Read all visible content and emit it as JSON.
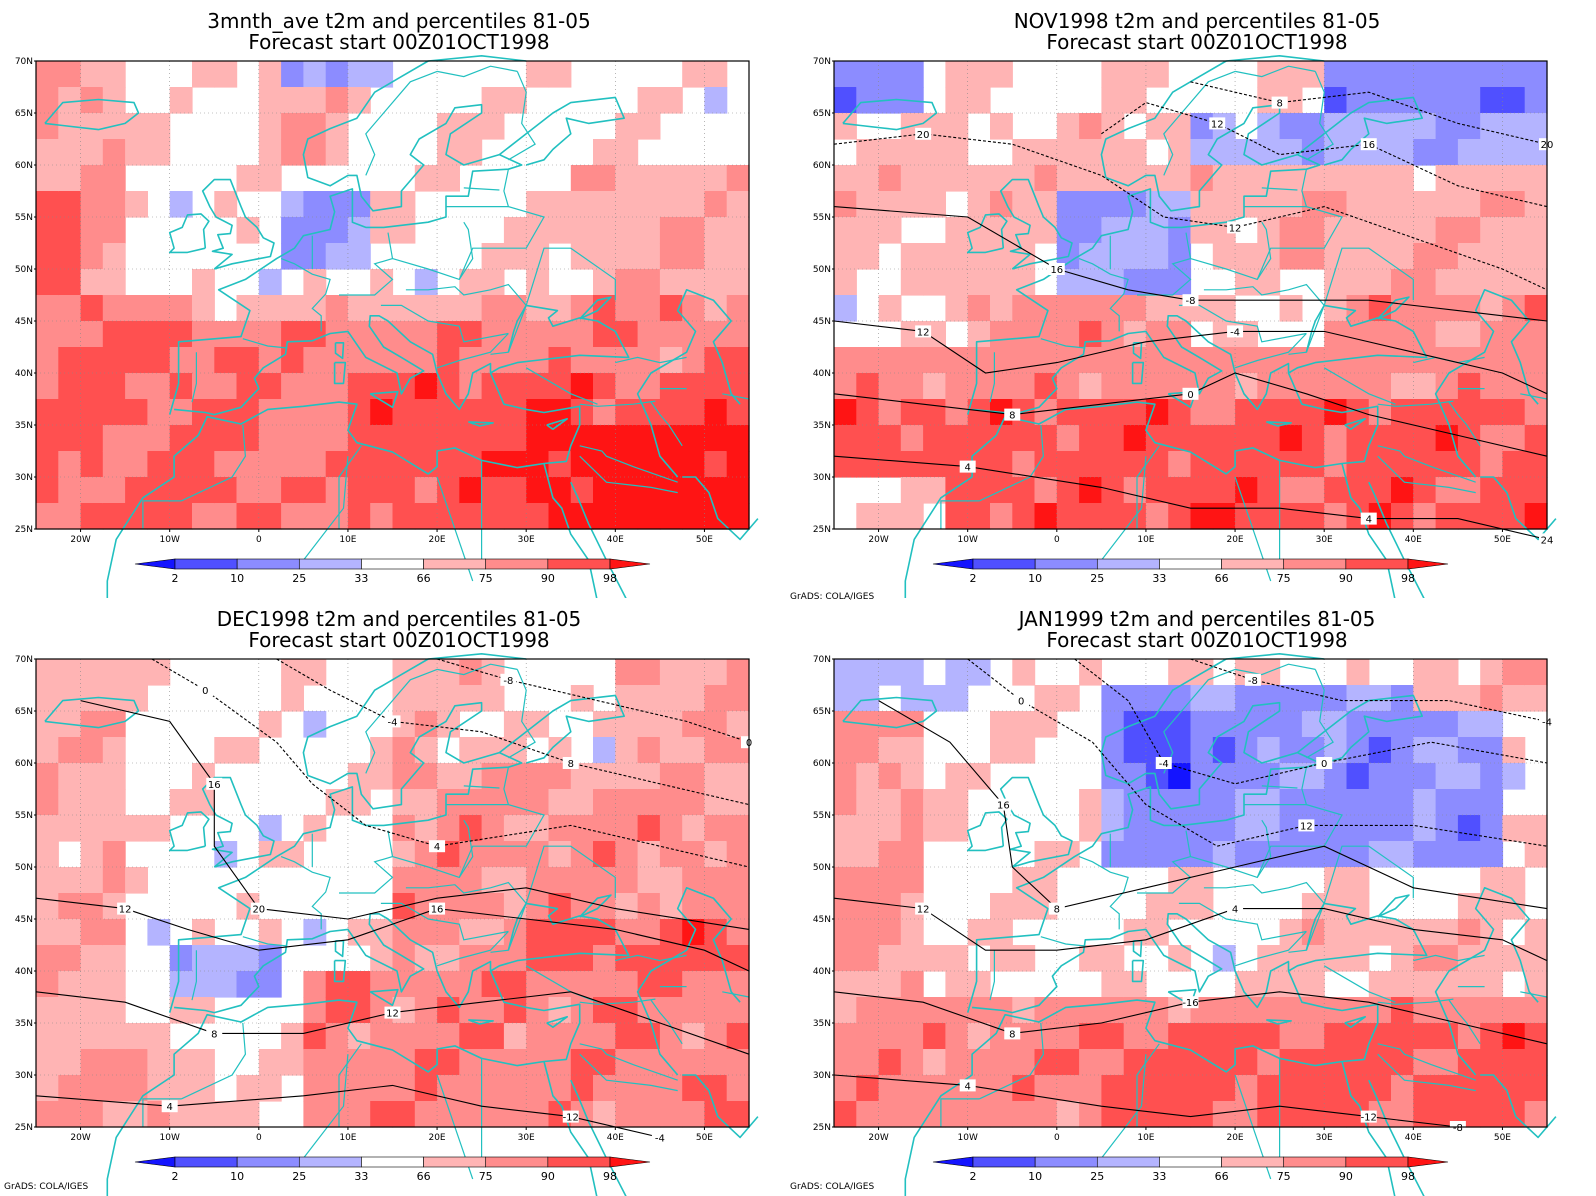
{
  "panels": [
    {
      "title1": "3mnth_ave t2m and percentiles 81-05",
      "title2": "Forecast start 00Z01OCT1998",
      "credit": ""
    },
    {
      "title1": "NOV1998 t2m and percentiles 81-05",
      "title2": "Forecast start 00Z01OCT1998",
      "credit": "GrADS: COLA/IGES"
    },
    {
      "title1": "DEC1998 t2m and percentiles 81-05",
      "title2": "Forecast start 00Z01OCT1998",
      "credit": "GrADS: COLA/IGES"
    },
    {
      "title1": "JAN1999 t2m and percentiles 81-05",
      "title2": "Forecast start 00Z01OCT1998",
      "credit": "GrADS: COLA/IGES"
    }
  ],
  "axes": {
    "lat_labels": [
      "70N",
      "65N",
      "60N",
      "55N",
      "50N",
      "45N",
      "40N",
      "35N",
      "30N",
      "25N"
    ],
    "lon_labels": [
      "20W",
      "10W",
      "0",
      "10E",
      "20E",
      "30E",
      "40E",
      "50E"
    ]
  },
  "colorbar": {
    "labels": [
      "2",
      "10",
      "25",
      "33",
      "66",
      "75",
      "90",
      "98"
    ],
    "colors": [
      "#1414ff",
      "#5050ff",
      "#8c8cff",
      "#b4b4ff",
      "#ffffff",
      "#ffb4b4",
      "#ff8c8c",
      "#ff5050",
      "#ff1414"
    ]
  },
  "colors": {
    "coast": "#22c0c0",
    "contour": "#000000",
    "grid": "#888888"
  },
  "contour_labels": [
    [
      "4",
      "8",
      "12",
      "16",
      "20",
      "12",
      "8",
      "4",
      "0",
      "-4",
      "-8",
      "12",
      "16",
      "20",
      "24"
    ],
    [
      "4",
      "8",
      "12",
      "16",
      "0",
      "-4",
      "-8",
      "-12",
      "12",
      "16",
      "20",
      "4",
      "8",
      "0",
      "-4"
    ],
    [
      "4",
      "8",
      "12",
      "16",
      "0",
      "-4",
      "-8",
      "-12",
      "-16",
      "4",
      "8",
      "12",
      "0",
      "-4",
      "-8"
    ]
  ]
}
